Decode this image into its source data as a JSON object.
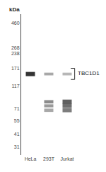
{
  "chart_data": {
    "type": "blot",
    "categories": [
      "HeLa",
      "293T",
      "Jurkat"
    ],
    "bands": [
      {
        "lane": "HeLa",
        "value": 152,
        "height": 14,
        "color": "#111111"
      },
      {
        "lane": "293T",
        "value": 152,
        "height": 9,
        "color": "#999999"
      },
      {
        "lane": "Jurkat",
        "value": 152,
        "height": 9,
        "color": "#aaaaaa"
      },
      {
        "lane": "293T",
        "value": 83,
        "height": 6,
        "color": "#777777"
      },
      {
        "lane": "293T",
        "value": 76,
        "height": 5,
        "color": "#888888"
      },
      {
        "lane": "293T",
        "value": 69,
        "height": 5,
        "color": "#999999"
      },
      {
        "lane": "Jurkat",
        "value": 83,
        "height": 8,
        "color": "#444444"
      },
      {
        "lane": "Jurkat",
        "value": 76,
        "height": 7,
        "color": "#555555"
      },
      {
        "lane": "Jurkat",
        "value": 69,
        "height": 6,
        "color": "#666666"
      }
    ],
    "log": "y",
    "ylim": [
      26,
      560
    ],
    "yticks": [
      31,
      41,
      55,
      71,
      117,
      171,
      238,
      268,
      460
    ],
    "y_label": "kDa",
    "annotation": "TBC1D1",
    "bracket": [
      135,
      172
    ],
    "grid": false
  }
}
